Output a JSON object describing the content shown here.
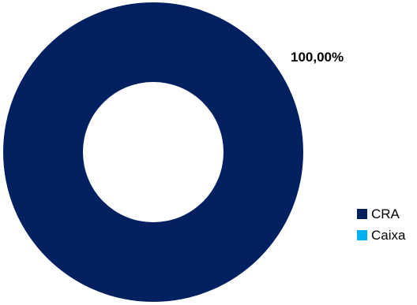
{
  "chart_data": {
    "type": "pie",
    "categories": [
      "CRA",
      "Caixa"
    ],
    "values": [
      100.0,
      0.0
    ],
    "colors": [
      "#002060",
      "#00B0F0"
    ],
    "data_labels": [
      "100,00%"
    ],
    "donut": true,
    "legend_placement": "bottom-right"
  }
}
